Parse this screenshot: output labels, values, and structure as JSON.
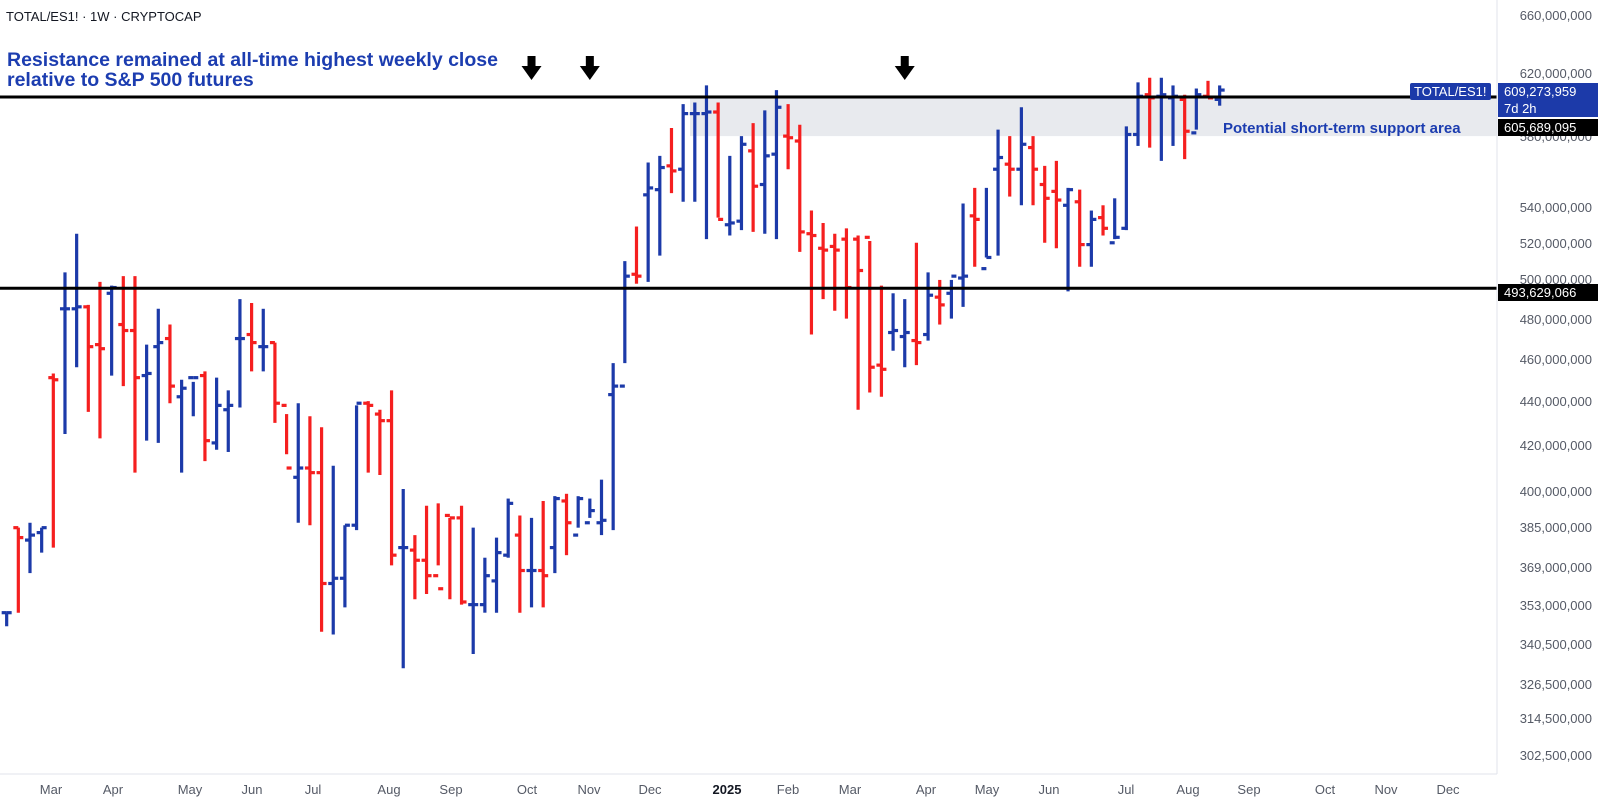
{
  "header": {
    "symbol": "TOTAL/ES1! · 1W · CRYPTOCAP"
  },
  "annotations": {
    "headline_line1": "Resistance remained at all-time highest weekly close",
    "headline_line2": "relative to S&P 500 futures",
    "support_area": "Potential short-term support area"
  },
  "price_labels": {
    "symbol_tag": "TOTAL/ES1!",
    "last_price": "609,273,959",
    "countdown": "7d 2h",
    "support_top": "605,689,095",
    "support_bottom": "493,629,066"
  },
  "colors": {
    "up": "#1c3aa9",
    "down": "#f51f1f",
    "accent": "#1c3db0",
    "zone": "#e8eaee"
  },
  "chart_data": {
    "type": "ohlc",
    "log_scale": true,
    "ylim": [
      295000000,
      670000000
    ],
    "y_ticks": [
      "660,000,000",
      "620,000,000",
      "580,000,000",
      "540,000,000",
      "520,000,000",
      "500,000,000",
      "480,000,000",
      "460,000,000",
      "440,000,000",
      "420,000,000",
      "400,000,000",
      "385,000,000",
      "369,000,000",
      "353,000,000",
      "340,500,000",
      "326,500,000",
      "314,500,000",
      "302,500,000"
    ],
    "x_ticks": [
      "Mar",
      "Apr",
      "May",
      "Jun",
      "Jul",
      "Aug",
      "Sep",
      "Oct",
      "Nov",
      "Dec",
      "2025",
      "Feb",
      "Mar",
      "Apr",
      "May",
      "Jun",
      "Jul",
      "Aug",
      "Sep",
      "Oct",
      "Nov",
      "Dec"
    ],
    "horizontal_lines": [
      609273959,
      493629066
    ],
    "support_zone": [
      580000000,
      605689095
    ],
    "arrow_markers": [
      "2024-12-16",
      "2025-01-20",
      "2025-07-28"
    ],
    "bars": [
      [
        "2024-02-05",
        350,
        350,
        345,
        350
      ],
      [
        "2024-02-12",
        383,
        383,
        350,
        379
      ],
      [
        "2024-02-19",
        378,
        385,
        365,
        380
      ],
      [
        "2024-02-26",
        381,
        383,
        373,
        383
      ],
      [
        "2024-03-04",
        449,
        451,
        375,
        448
      ],
      [
        "2024-03-11",
        483,
        502,
        423,
        483
      ],
      [
        "2024-03-18",
        483,
        523,
        454,
        484
      ],
      [
        "2024-03-25",
        484,
        485,
        433,
        464
      ],
      [
        "2024-04-01",
        465,
        497,
        421,
        463
      ],
      [
        "2024-04-08",
        491,
        495,
        450,
        494
      ],
      [
        "2024-04-15",
        475,
        500,
        445,
        472
      ],
      [
        "2024-04-22",
        472,
        500,
        406,
        449
      ],
      [
        "2024-04-29",
        450,
        465,
        420,
        451
      ],
      [
        "2024-05-06",
        464,
        483,
        419,
        466
      ],
      [
        "2024-05-13",
        468,
        475,
        437,
        445
      ],
      [
        "2024-05-20",
        440,
        448,
        406,
        444
      ],
      [
        "2024-05-27",
        449,
        447,
        431,
        449
      ],
      [
        "2024-06-03",
        450,
        452,
        411,
        420
      ],
      [
        "2024-06-10",
        419,
        449,
        416,
        436
      ],
      [
        "2024-06-17",
        434,
        443,
        415,
        436
      ],
      [
        "2024-06-24",
        468,
        488,
        435,
        468
      ],
      [
        "2024-07-01",
        470,
        486,
        452,
        466
      ],
      [
        "2024-07-08",
        464,
        483,
        452,
        464
      ],
      [
        "2024-07-15",
        466,
        466,
        428,
        437
      ],
      [
        "2024-07-22",
        436,
        432,
        414,
        408
      ],
      [
        "2024-07-29",
        404,
        437,
        385,
        408
      ],
      [
        "2024-08-05",
        408,
        431,
        384,
        406
      ],
      [
        "2024-08-12",
        406,
        426,
        343,
        361
      ],
      [
        "2024-08-19",
        361,
        409,
        342,
        363
      ],
      [
        "2024-08-26",
        363,
        384,
        352,
        384
      ],
      [
        "2024-09-02",
        384,
        436,
        382,
        437
      ],
      [
        "2024-09-09",
        437,
        438,
        406,
        436
      ],
      [
        "2024-09-16",
        432,
        434,
        405,
        429
      ],
      [
        "2024-09-23",
        429,
        443,
        368,
        372
      ],
      [
        "2024-09-30",
        375,
        399,
        330,
        375
      ],
      [
        "2024-10-07",
        374,
        380,
        355,
        370
      ],
      [
        "2024-10-14",
        370,
        392,
        357,
        364
      ],
      [
        "2024-10-21",
        364,
        393,
        368,
        359
      ],
      [
        "2024-10-28",
        388,
        387,
        355,
        387
      ],
      [
        "2024-11-04",
        387,
        392,
        353,
        354
      ],
      [
        "2024-11-11",
        353,
        383,
        335,
        353
      ],
      [
        "2024-11-18",
        353,
        371,
        350,
        364
      ],
      [
        "2024-11-25",
        362,
        379,
        350,
        373
      ],
      [
        "2024-12-02",
        372,
        395,
        371,
        393
      ],
      [
        "2024-12-09",
        380,
        388,
        350,
        366
      ],
      [
        "2024-12-16",
        366,
        387,
        352,
        366
      ],
      [
        "2024-12-23",
        366,
        394,
        352,
        364
      ],
      [
        "2024-12-30",
        375,
        396,
        365,
        395
      ],
      [
        "2025-01-06",
        394,
        397,
        372,
        385
      ],
      [
        "2025-01-13",
        380,
        396,
        383,
        395
      ],
      [
        "2025-01-20",
        385,
        395,
        387,
        390
      ],
      [
        "2025-01-27",
        385,
        403,
        380,
        386
      ],
      [
        "2025-02-03",
        441,
        456,
        382,
        445
      ],
      [
        "2025-02-10",
        445,
        508,
        456,
        500
      ],
      [
        "2025-02-17",
        501,
        527,
        496,
        500
      ],
      [
        "2025-02-24",
        545,
        564,
        497,
        549
      ],
      [
        "2025-03-03",
        548,
        568,
        511,
        561
      ],
      [
        "2025-03-10",
        562,
        585,
        546,
        559
      ],
      [
        "2025-03-17",
        560,
        600,
        541,
        594
      ],
      [
        "2025-03-24",
        594,
        601,
        541,
        594
      ],
      [
        "2025-03-31",
        594,
        612,
        520,
        595
      ],
      [
        "2025-04-07",
        595,
        601,
        532,
        531
      ],
      [
        "2025-04-14",
        528,
        568,
        522,
        529
      ],
      [
        "2025-04-21",
        530,
        580,
        525,
        575
      ],
      [
        "2025-04-28",
        571,
        588,
        524,
        550
      ],
      [
        "2025-05-05",
        551,
        596,
        523,
        568
      ],
      [
        "2025-05-12",
        569,
        609,
        520,
        598
      ],
      [
        "2025-05-19",
        580,
        600,
        560,
        579
      ],
      [
        "2025-05-26",
        577,
        587,
        513,
        524
      ],
      [
        "2025-06-02",
        523,
        536,
        470,
        522
      ],
      [
        "2025-06-09",
        515,
        529,
        488,
        514
      ],
      [
        "2025-06-16",
        516,
        523,
        482,
        514
      ],
      [
        "2025-06-23",
        520,
        526,
        478,
        494
      ],
      [
        "2025-06-30",
        520,
        522,
        434,
        503
      ],
      [
        "2025-07-07",
        521,
        519,
        442,
        454
      ],
      [
        "2025-07-14",
        455,
        495,
        440,
        453
      ],
      [
        "2025-07-21",
        471,
        491,
        462,
        472
      ],
      [
        "2025-07-28",
        469,
        488,
        454,
        471
      ],
      [
        "2025-08-04",
        467,
        518,
        455,
        466
      ],
      [
        "2025-08-11",
        470,
        502,
        467,
        490
      ],
      [
        "2025-08-18",
        489,
        498,
        475,
        485
      ],
      [
        "2025-08-25",
        491,
        498,
        478,
        500
      ],
      [
        "2025-09-01",
        499,
        540,
        484,
        500
      ],
      [
        "2025-09-08",
        533,
        549,
        505,
        531
      ],
      [
        "2025-09-15",
        504,
        549,
        510,
        510
      ],
      [
        "2025-09-22",
        560,
        584,
        511,
        567
      ],
      [
        "2025-09-29",
        563,
        580,
        544,
        560
      ],
      [
        "2025-10-06",
        560,
        598,
        539,
        575
      ],
      [
        "2025-10-13",
        573,
        580,
        539,
        560
      ],
      [
        "2025-10-20",
        551,
        562,
        518,
        543
      ],
      [
        "2025-10-27",
        547,
        565,
        515,
        542
      ],
      [
        "2025-11-03",
        539,
        549,
        492,
        548
      ],
      [
        "2025-11-10",
        541,
        548,
        505,
        517
      ],
      [
        "2025-11-17",
        517,
        536,
        505,
        531
      ],
      [
        "2025-11-24",
        532,
        539,
        522,
        526
      ],
      [
        "2025-12-01",
        518,
        543,
        520,
        521
      ],
      [
        "2025-12-08",
        526,
        586,
        525,
        581
      ],
      [
        "2025-12-15",
        581,
        614,
        574,
        605
      ],
      [
        "2025-12-22",
        606,
        617,
        573,
        604
      ],
      [
        "2025-12-29",
        605,
        617,
        565,
        606
      ],
      [
        "2026-01-05",
        604,
        612,
        574,
        605
      ],
      [
        "2026-01-12",
        603,
        606,
        566,
        583
      ],
      [
        "2026-01-19",
        582,
        610,
        584,
        606
      ],
      [
        "2026-01-26",
        605,
        615,
        604,
        604
      ],
      [
        "2026-02-02",
        603,
        612,
        599,
        609
      ]
    ]
  }
}
